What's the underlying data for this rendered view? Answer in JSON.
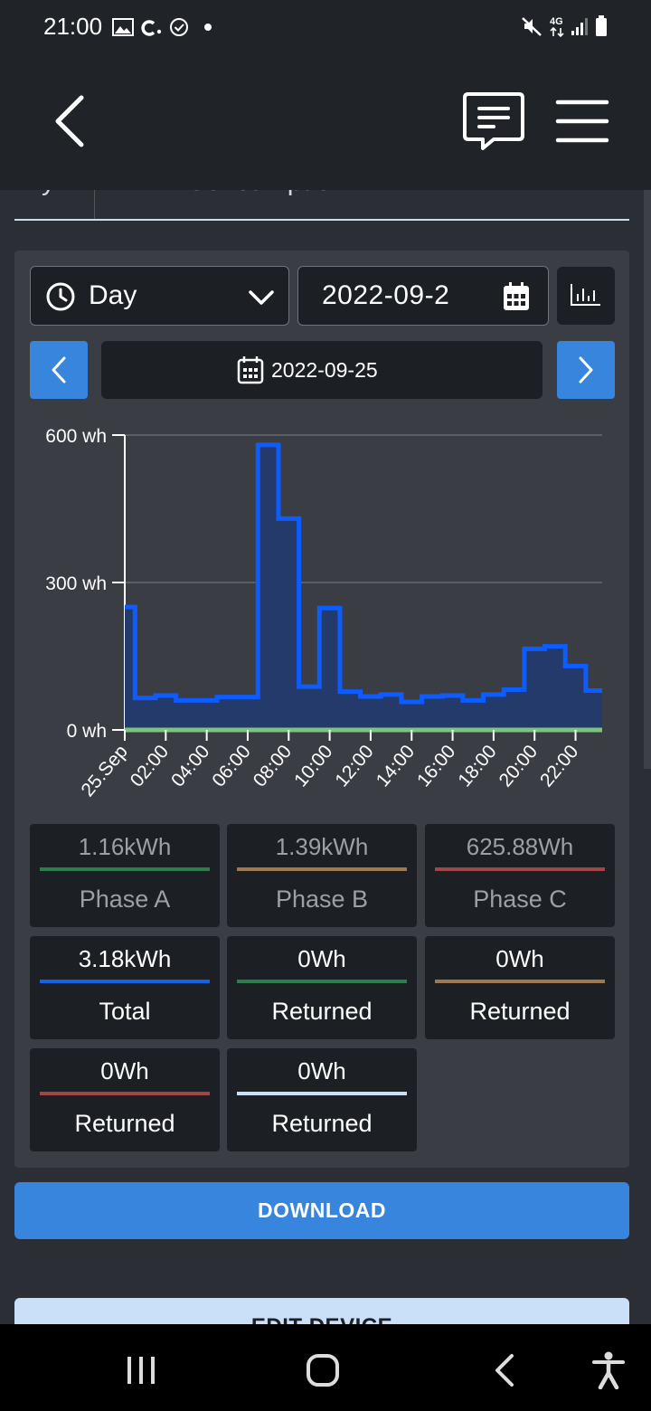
{
  "status_bar": {
    "time": "21:00",
    "network": "4G"
  },
  "header": {
    "back_icon": "back-arrow-icon",
    "chat_icon": "chat-icon",
    "menu_icon": "hamburger-menu-icon"
  },
  "tabs": {
    "partial_tab_1": "y",
    "partial_tab_2": "Consumption"
  },
  "controls": {
    "period_select": "Day",
    "date_input": "2022-09-2",
    "current_date": "2022-09-25"
  },
  "chart_data": {
    "type": "area",
    "step": true,
    "y_ticks": [
      "600 wh",
      "300 wh",
      "0 wh"
    ],
    "ylim": [
      0,
      600
    ],
    "x_tick_labels": [
      "25.Sep",
      "02:00",
      "04:00",
      "06:00",
      "08:00",
      "10:00",
      "12:00",
      "14:00",
      "16:00",
      "18:00",
      "20:00",
      "22:00"
    ],
    "x_hours": [
      0,
      2,
      4,
      6,
      8,
      10,
      12,
      14,
      16,
      18,
      20,
      22
    ],
    "x_max_hours": 23.3,
    "series": [
      {
        "color": "#0d5cff",
        "fill": "#243a6b",
        "points": [
          [
            0,
            250
          ],
          [
            0.5,
            65
          ],
          [
            1.5,
            70
          ],
          [
            2.5,
            60
          ],
          [
            4.5,
            67
          ],
          [
            6.5,
            580
          ],
          [
            7.5,
            430
          ],
          [
            8.5,
            88
          ],
          [
            9.5,
            248
          ],
          [
            10.5,
            78
          ],
          [
            11.5,
            68
          ],
          [
            12.5,
            72
          ],
          [
            13.5,
            57
          ],
          [
            14.5,
            68
          ],
          [
            15.5,
            70
          ],
          [
            16.5,
            60
          ],
          [
            17.5,
            72
          ],
          [
            18.5,
            82
          ],
          [
            19.5,
            165
          ],
          [
            20.5,
            170
          ],
          [
            21.5,
            130
          ],
          [
            22.5,
            80
          ]
        ]
      },
      {
        "color": "#7cc47e",
        "points": [
          [
            0,
            0
          ],
          [
            23.3,
            0
          ]
        ]
      }
    ]
  },
  "stats": [
    {
      "value": "1.16kWh",
      "label": "Phase A",
      "color": "#2e7d4f",
      "dim": true
    },
    {
      "value": "1.39kWh",
      "label": "Phase B",
      "color": "#a07850",
      "dim": true
    },
    {
      "value": "625.88Wh",
      "label": "Phase C",
      "color": "#a04646",
      "dim": true
    },
    {
      "value": "3.18kWh",
      "label": "Total",
      "color": "#1462e8",
      "dim": false
    },
    {
      "value": "0Wh",
      "label": "Returned",
      "color": "#2e7d4f",
      "dim": false
    },
    {
      "value": "0Wh",
      "label": "Returned",
      "color": "#a07850",
      "dim": false
    },
    {
      "value": "0Wh",
      "label": "Returned",
      "color": "#a04646",
      "dim": false
    },
    {
      "value": "0Wh",
      "label": "Returned",
      "color": "#c9e0f8",
      "dim": false
    }
  ],
  "buttons": {
    "download": "DOWNLOAD",
    "edit_device": "EDIT DEVICE"
  }
}
